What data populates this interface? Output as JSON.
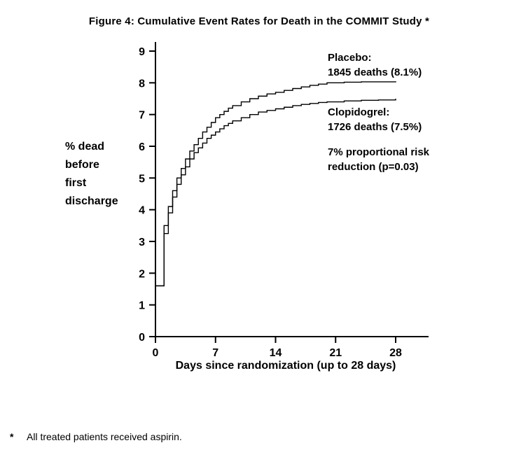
{
  "title": "Figure 4: Cumulative Event Rates for Death in the COMMIT Study *",
  "y_axis_label": "% dead\nbefore\nfirst\ndischarge",
  "x_axis_label": "Days since randomization (up to 28 days)",
  "legend": {
    "placebo": "Placebo:\n1845 deaths (8.1%)",
    "clopidogrel": "Clopidogrel:\n1726 deaths (7.5%)",
    "annotation": "7% proportional risk\nreduction (p=0.03)"
  },
  "footnote": {
    "marker": "*",
    "text": "All treated patients received aspirin."
  },
  "chart_data": {
    "type": "line",
    "subtype": "step-after",
    "title": "Figure 4: Cumulative Event Rates for Death in the COMMIT Study *",
    "xlabel": "Days since randomization (up to 28 days)",
    "ylabel": "% dead before first discharge",
    "xlim": [
      0,
      30.5
    ],
    "ylim": [
      0,
      9.4
    ],
    "x_ticks": [
      0,
      7,
      14,
      21,
      28
    ],
    "y_ticks": [
      0,
      1,
      2,
      3,
      4,
      5,
      6,
      7,
      8,
      9
    ],
    "grid": false,
    "legend_position": "inside-top-right",
    "line_color": "#000000",
    "annotations": [
      "7% proportional risk reduction (p=0.03)"
    ],
    "series": [
      {
        "name": "Placebo",
        "deaths": 1845,
        "event_rate_pct": 8.1,
        "points": [
          [
            0,
            1.6
          ],
          [
            1,
            3.5
          ],
          [
            1.5,
            4.1
          ],
          [
            2,
            4.6
          ],
          [
            2.5,
            5.0
          ],
          [
            3,
            5.3
          ],
          [
            3.5,
            5.6
          ],
          [
            4,
            5.85
          ],
          [
            4.5,
            6.05
          ],
          [
            5,
            6.25
          ],
          [
            5.5,
            6.45
          ],
          [
            6,
            6.6
          ],
          [
            6.5,
            6.75
          ],
          [
            7,
            6.9
          ],
          [
            7.5,
            7.0
          ],
          [
            8,
            7.1
          ],
          [
            8.5,
            7.2
          ],
          [
            9,
            7.28
          ],
          [
            10,
            7.4
          ],
          [
            11,
            7.5
          ],
          [
            12,
            7.58
          ],
          [
            13,
            7.65
          ],
          [
            14,
            7.7
          ],
          [
            15,
            7.76
          ],
          [
            16,
            7.82
          ],
          [
            17,
            7.87
          ],
          [
            18,
            7.92
          ],
          [
            19,
            7.96
          ],
          [
            20,
            8.0
          ],
          [
            22,
            8.02
          ],
          [
            24,
            8.03
          ],
          [
            26,
            8.03
          ],
          [
            28,
            8.05
          ]
        ]
      },
      {
        "name": "Clopidogrel",
        "deaths": 1726,
        "event_rate_pct": 7.5,
        "points": [
          [
            0,
            1.6
          ],
          [
            1,
            3.25
          ],
          [
            1.5,
            3.9
          ],
          [
            2,
            4.4
          ],
          [
            2.5,
            4.8
          ],
          [
            3,
            5.1
          ],
          [
            3.5,
            5.35
          ],
          [
            4,
            5.6
          ],
          [
            4.5,
            5.8
          ],
          [
            5,
            5.95
          ],
          [
            5.5,
            6.1
          ],
          [
            6,
            6.25
          ],
          [
            6.5,
            6.35
          ],
          [
            7,
            6.45
          ],
          [
            7.5,
            6.55
          ],
          [
            8,
            6.65
          ],
          [
            8.5,
            6.72
          ],
          [
            9,
            6.8
          ],
          [
            10,
            6.9
          ],
          [
            11,
            7.0
          ],
          [
            12,
            7.08
          ],
          [
            13,
            7.13
          ],
          [
            14,
            7.18
          ],
          [
            15,
            7.23
          ],
          [
            16,
            7.28
          ],
          [
            17,
            7.32
          ],
          [
            18,
            7.35
          ],
          [
            19,
            7.38
          ],
          [
            20,
            7.4
          ],
          [
            22,
            7.43
          ],
          [
            24,
            7.45
          ],
          [
            26,
            7.46
          ],
          [
            28,
            7.5
          ]
        ]
      }
    ]
  }
}
